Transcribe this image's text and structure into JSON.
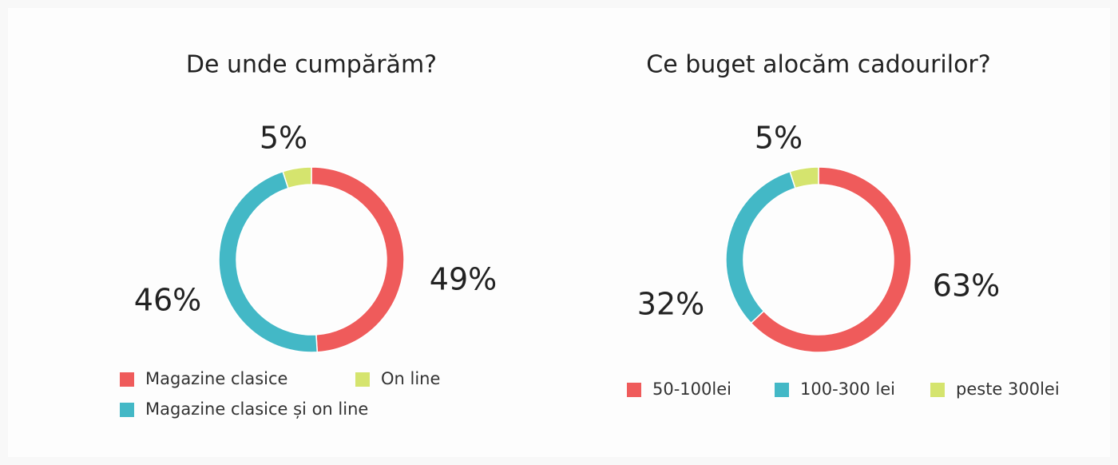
{
  "chart_data": [
    {
      "type": "pie",
      "title": "De unde cumpărăm?",
      "categories": [
        "Magazine clasice",
        "Magazine clasice și on line",
        "On line"
      ],
      "values": [
        49,
        46,
        5
      ],
      "value_labels": [
        "49%",
        "46%",
        "5%"
      ],
      "colors": [
        "#ef5b5b",
        "#43b8c6",
        "#d5e46e"
      ]
    },
    {
      "type": "pie",
      "title": "Ce buget alocăm cadourilor?",
      "categories": [
        "50-100lei",
        "100-300 lei",
        "peste 300lei"
      ],
      "values": [
        63,
        32,
        5
      ],
      "value_labels": [
        "63%",
        "32%",
        "5%"
      ],
      "colors": [
        "#ef5b5b",
        "#43b8c6",
        "#d5e46e"
      ]
    }
  ]
}
